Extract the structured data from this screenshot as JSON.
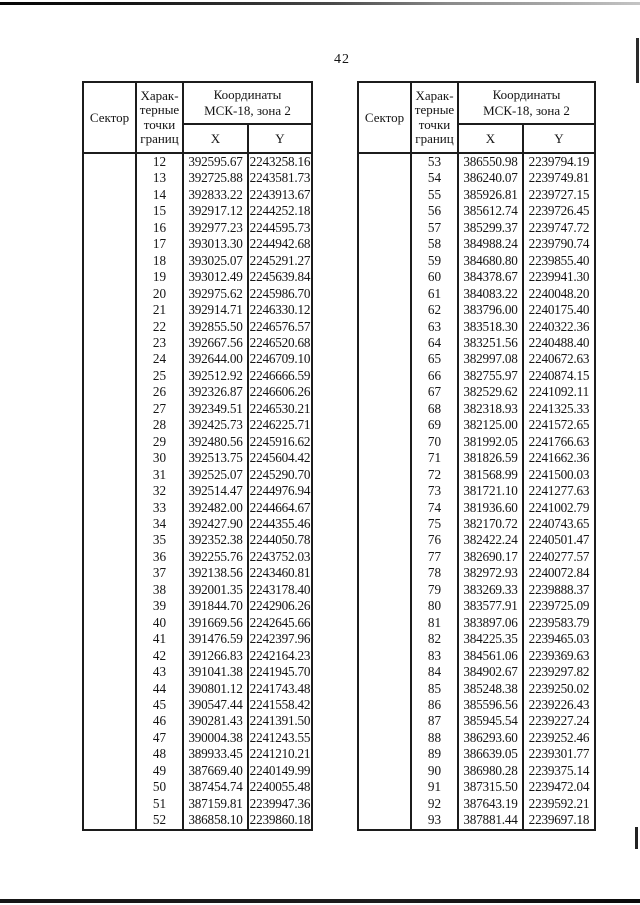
{
  "page_number": "42",
  "header": {
    "sector": "Сектор",
    "points": "Харак-\nтерные\nточки\nграниц",
    "coords": "Координаты\nМСК-18, зона 2",
    "x": "X",
    "y": "Y"
  },
  "left_table": {
    "rows": [
      [
        "12",
        "392595.67",
        "2243258.16"
      ],
      [
        "13",
        "392725.88",
        "2243581.73"
      ],
      [
        "14",
        "392833.22",
        "2243913.67"
      ],
      [
        "15",
        "392917.12",
        "2244252.18"
      ],
      [
        "16",
        "392977.23",
        "2244595.73"
      ],
      [
        "17",
        "393013.30",
        "2244942.68"
      ],
      [
        "18",
        "393025.07",
        "2245291.27"
      ],
      [
        "19",
        "393012.49",
        "2245639.84"
      ],
      [
        "20",
        "392975.62",
        "2245986.70"
      ],
      [
        "21",
        "392914.71",
        "2246330.12"
      ],
      [
        "22",
        "392855.50",
        "2246576.57"
      ],
      [
        "23",
        "392667.56",
        "2246520.68"
      ],
      [
        "24",
        "392644.00",
        "2246709.10"
      ],
      [
        "25",
        "392512.92",
        "2246666.59"
      ],
      [
        "26",
        "392326.87",
        "2246606.26"
      ],
      [
        "27",
        "392349.51",
        "2246530.21"
      ],
      [
        "28",
        "392425.73",
        "2246225.71"
      ],
      [
        "29",
        "392480.56",
        "2245916.62"
      ],
      [
        "30",
        "392513.75",
        "2245604.42"
      ],
      [
        "31",
        "392525.07",
        "2245290.70"
      ],
      [
        "32",
        "392514.47",
        "2244976.94"
      ],
      [
        "33",
        "392482.00",
        "2244664.67"
      ],
      [
        "34",
        "392427.90",
        "2244355.46"
      ],
      [
        "35",
        "392352.38",
        "2244050.78"
      ],
      [
        "36",
        "392255.76",
        "2243752.03"
      ],
      [
        "37",
        "392138.56",
        "2243460.81"
      ],
      [
        "38",
        "392001.35",
        "2243178.40"
      ],
      [
        "39",
        "391844.70",
        "2242906.26"
      ],
      [
        "40",
        "391669.56",
        "2242645.66"
      ],
      [
        "41",
        "391476.59",
        "2242397.96"
      ],
      [
        "42",
        "391266.83",
        "2242164.23"
      ],
      [
        "43",
        "391041.38",
        "2241945.70"
      ],
      [
        "44",
        "390801.12",
        "2241743.48"
      ],
      [
        "45",
        "390547.44",
        "2241558.42"
      ],
      [
        "46",
        "390281.43",
        "2241391.50"
      ],
      [
        "47",
        "390004.38",
        "2241243.55"
      ],
      [
        "48",
        "389933.45",
        "2241210.21"
      ],
      [
        "49",
        "387669.40",
        "2240149.99"
      ],
      [
        "50",
        "387454.74",
        "2240055.48"
      ],
      [
        "51",
        "387159.81",
        "2239947.36"
      ],
      [
        "52",
        "386858.10",
        "2239860.18"
      ]
    ]
  },
  "right_table": {
    "rows": [
      [
        "53",
        "386550.98",
        "2239794.19"
      ],
      [
        "54",
        "386240.07",
        "2239749.81"
      ],
      [
        "55",
        "385926.81",
        "2239727.15"
      ],
      [
        "56",
        "385612.74",
        "2239726.45"
      ],
      [
        "57",
        "385299.37",
        "2239747.72"
      ],
      [
        "58",
        "384988.24",
        "2239790.74"
      ],
      [
        "59",
        "384680.80",
        "2239855.40"
      ],
      [
        "60",
        "384378.67",
        "2239941.30"
      ],
      [
        "61",
        "384083.22",
        "2240048.20"
      ],
      [
        "62",
        "383796.00",
        "2240175.40"
      ],
      [
        "63",
        "383518.30",
        "2240322.36"
      ],
      [
        "64",
        "383251.56",
        "2240488.40"
      ],
      [
        "65",
        "382997.08",
        "2240672.63"
      ],
      [
        "66",
        "382755.97",
        "2240874.15"
      ],
      [
        "67",
        "382529.62",
        "2241092.11"
      ],
      [
        "68",
        "382318.93",
        "2241325.33"
      ],
      [
        "69",
        "382125.00",
        "2241572.65"
      ],
      [
        "70",
        "381992.05",
        "2241766.63"
      ],
      [
        "71",
        "381826.59",
        "2241662.36"
      ],
      [
        "72",
        "381568.99",
        "2241500.03"
      ],
      [
        "73",
        "381721.10",
        "2241277.63"
      ],
      [
        "74",
        "381936.60",
        "2241002.79"
      ],
      [
        "75",
        "382170.72",
        "2240743.65"
      ],
      [
        "76",
        "382422.24",
        "2240501.47"
      ],
      [
        "77",
        "382690.17",
        "2240277.57"
      ],
      [
        "78",
        "382972.93",
        "2240072.84"
      ],
      [
        "79",
        "383269.33",
        "2239888.37"
      ],
      [
        "80",
        "383577.91",
        "2239725.09"
      ],
      [
        "81",
        "383897.06",
        "2239583.79"
      ],
      [
        "82",
        "384225.35",
        "2239465.03"
      ],
      [
        "83",
        "384561.06",
        "2239369.63"
      ],
      [
        "84",
        "384902.67",
        "2239297.82"
      ],
      [
        "85",
        "385248.38",
        "2239250.02"
      ],
      [
        "86",
        "385596.56",
        "2239226.43"
      ],
      [
        "87",
        "385945.54",
        "2239227.24"
      ],
      [
        "88",
        "386293.60",
        "2239252.46"
      ],
      [
        "89",
        "386639.05",
        "2239301.77"
      ],
      [
        "90",
        "386980.28",
        "2239375.14"
      ],
      [
        "91",
        "387315.50",
        "2239472.04"
      ],
      [
        "92",
        "387643.19",
        "2239592.21"
      ],
      [
        "93",
        "387881.44",
        "2239697.18"
      ]
    ]
  }
}
